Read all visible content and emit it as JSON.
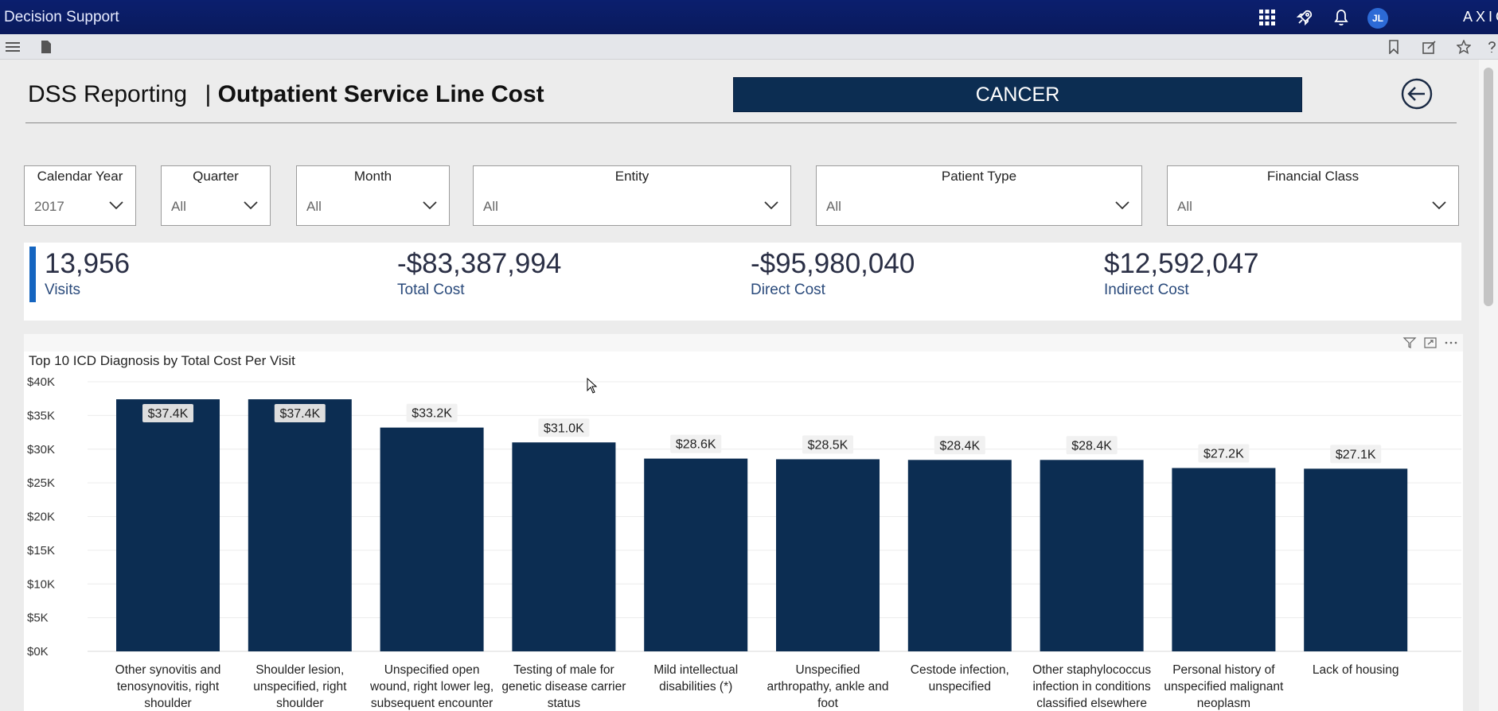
{
  "app": {
    "title": "Decision Support",
    "brand": "AXIO",
    "user_initials": "JL",
    "header_icons": [
      "apps-grid-icon",
      "rocket-icon",
      "bell-icon"
    ],
    "toolbar_icons": [
      "hamburger-menu-icon",
      "page-icon",
      "bookmark-icon",
      "edit-icon",
      "star-icon",
      "help-icon"
    ]
  },
  "report": {
    "title_light": "DSS Reporting",
    "title_sep": "|",
    "title_bold": "Outpatient Service Line Cost",
    "service_line_button": "CANCER",
    "back_icon": "back-arrow-icon"
  },
  "filters": [
    {
      "label": "Calendar Year",
      "value": "2017"
    },
    {
      "label": "Quarter",
      "value": "All"
    },
    {
      "label": "Month",
      "value": "All"
    },
    {
      "label": "Entity",
      "value": "All"
    },
    {
      "label": "Patient Type",
      "value": "All"
    },
    {
      "label": "Financial Class",
      "value": "All"
    }
  ],
  "kpis": [
    {
      "value": "13,956",
      "caption": "Visits"
    },
    {
      "value": "-$83,387,994",
      "caption": "Total Cost"
    },
    {
      "value": "-$95,980,040",
      "caption": "Direct Cost"
    },
    {
      "value": "$12,592,047",
      "caption": "Indirect Cost"
    }
  ],
  "colors": {
    "bar": "#0c2d52",
    "header_bg": "#0a1a5c",
    "kpi_accent": "#1565c0"
  },
  "chart_data": {
    "type": "bar",
    "title": "Top 10 ICD Diagnosis by Total Cost Per Visit",
    "categories": [
      [
        "Other synovitis and",
        "tenosynovitis, right",
        "shoulder"
      ],
      [
        "Shoulder lesion,",
        "unspecified, right",
        "shoulder"
      ],
      [
        "Unspecified open",
        "wound, right lower leg,",
        "subsequent encounter"
      ],
      [
        "Testing of male for",
        "genetic disease carrier",
        "status"
      ],
      [
        "Mild intellectual",
        "disabilities (*)"
      ],
      [
        "Unspecified",
        "arthropathy, ankle and",
        "foot"
      ],
      [
        "Cestode infection,",
        "unspecified"
      ],
      [
        "Other staphylococcus",
        "infection in conditions",
        "classified elsewhere"
      ],
      [
        "Personal history of",
        "unspecified malignant",
        "neoplasm"
      ],
      [
        "Lack of housing"
      ]
    ],
    "values": [
      37400,
      37400,
      33200,
      31000,
      28600,
      28500,
      28400,
      28400,
      27200,
      27100
    ],
    "data_labels": [
      "$37.4K",
      "$37.4K",
      "$33.2K",
      "$31.0K",
      "$28.6K",
      "$28.5K",
      "$28.4K",
      "$28.4K",
      "$27.2K",
      "$27.1K"
    ],
    "yticks": [
      "$0K",
      "$5K",
      "$10K",
      "$15K",
      "$20K",
      "$25K",
      "$30K",
      "$35K",
      "$40K"
    ],
    "ylim": [
      0,
      40000
    ],
    "grid": true,
    "xlabel": "",
    "ylabel": ""
  }
}
